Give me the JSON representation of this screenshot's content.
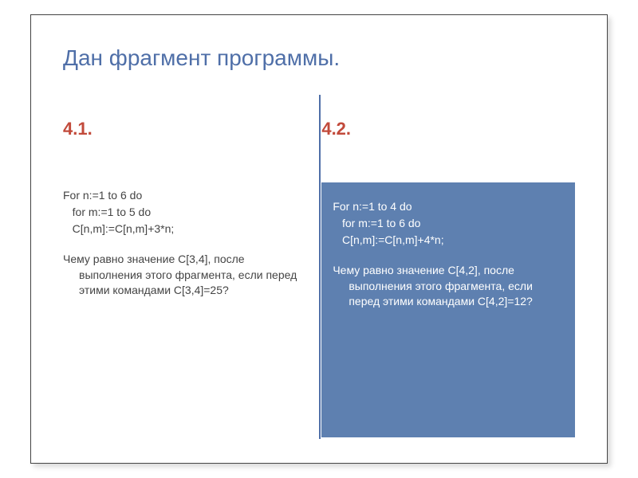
{
  "slide": {
    "title": "Дан фрагмент программы.",
    "divider_color": "#4f6fa8",
    "title_color": "#4f6fa8",
    "section_num_color": "#c24a3b",
    "right_box_bg": "#5e80b0"
  },
  "left": {
    "num": "4.1.",
    "code_line1": "For n:=1 to 6 do",
    "code_line2": "   for m:=1 to 5 do",
    "code_line3": "   C[n,m]:=C[n,m]+3*n;",
    "question_lead": "Чему равно значение С[3,4], после",
    "question_cont": "выполнения этого фрагмента, если перед этими командами С[3,4]=25?"
  },
  "right": {
    "num": "4.2.",
    "code_line1": "For n:=1 to 4 do",
    "code_line2": "   for m:=1 to 6 do",
    "code_line3": "   C[n,m]:=C[n,m]+4*n;",
    "question_lead": "Чему равно значение С[4,2], после",
    "question_cont": "выполнения этого фрагмента, если перед этими командами С[4,2]=12?"
  }
}
